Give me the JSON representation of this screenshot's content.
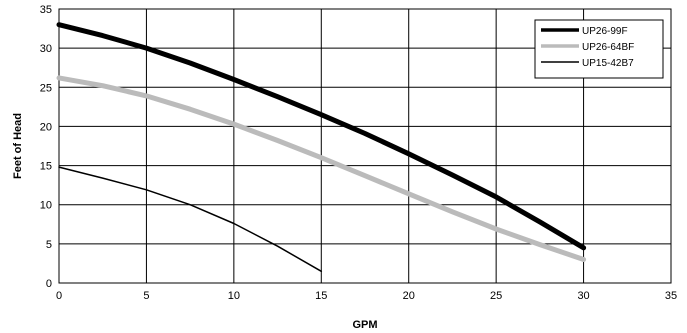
{
  "chart_data": {
    "type": "line",
    "title": "",
    "xlabel": "GPM",
    "ylabel": "Feet of Head",
    "xlim": [
      0,
      35
    ],
    "ylim": [
      0,
      35
    ],
    "xticks": [
      0,
      5,
      10,
      15,
      20,
      25,
      30,
      35
    ],
    "yticks": [
      0,
      5,
      10,
      15,
      20,
      25,
      30,
      35
    ],
    "grid": true,
    "legend_position": "top-right",
    "series": [
      {
        "name": "UP26-99F",
        "color": "#000000",
        "weight": "thick",
        "x": [
          0,
          2.5,
          5,
          7.5,
          10,
          12.5,
          15,
          17.5,
          20,
          22.5,
          25,
          27.5,
          30
        ],
        "y": [
          33,
          31.6,
          30,
          28.1,
          26,
          23.8,
          21.5,
          19.1,
          16.5,
          13.8,
          11,
          7.8,
          4.5
        ]
      },
      {
        "name": "UP26-64BF",
        "color": "#bbbbbb",
        "weight": "thick",
        "x": [
          0,
          2.5,
          5,
          7.5,
          10,
          12.5,
          15,
          17.5,
          20,
          22.5,
          25,
          27.5,
          30
        ],
        "y": [
          26.2,
          25.2,
          23.9,
          22.2,
          20.3,
          18.2,
          16,
          13.7,
          11.4,
          9.1,
          6.9,
          4.9,
          3
        ]
      },
      {
        "name": "UP15-42B7",
        "color": "#000000",
        "weight": "thin",
        "x": [
          0,
          2.5,
          5,
          7.5,
          10,
          12.5,
          15
        ],
        "y": [
          14.8,
          13.4,
          11.9,
          10,
          7.6,
          4.7,
          1.5
        ]
      }
    ]
  }
}
